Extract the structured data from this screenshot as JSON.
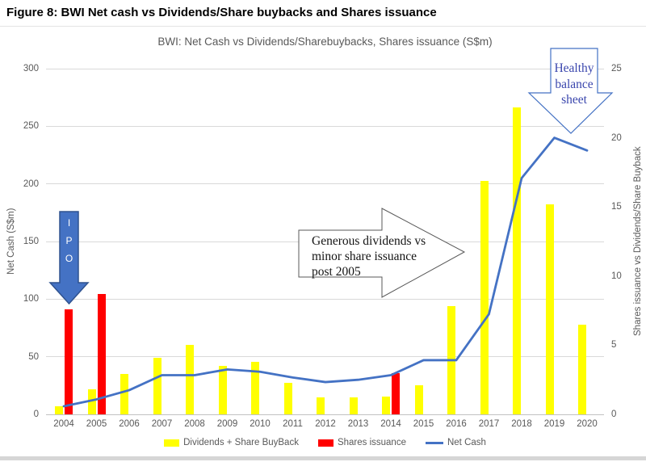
{
  "figure_caption": "Figure 8: BWI Net cash vs Dividends/Share buybacks and Shares issuance",
  "chart": {
    "title": "BWI: Net Cash vs Dividends/Sharebuybacks, Shares issuance (S$m)",
    "left_axis": {
      "title": "Net Cash (S$m)",
      "ticks": [
        0,
        50,
        100,
        150,
        200,
        250,
        300
      ],
      "max": 300
    },
    "right_axis": {
      "title": "Shares issuance vs Dividends/Share Buyback",
      "ticks": [
        0,
        5,
        10,
        15,
        20,
        25
      ],
      "max": 25
    }
  },
  "chart_data": {
    "type": "bar",
    "subtype": "combo-bar-line-dual-axis",
    "title": "BWI: Net Cash vs Dividends/Sharebuybacks, Shares issuance (S$m)",
    "categories": [
      2004,
      2005,
      2006,
      2007,
      2008,
      2009,
      2010,
      2011,
      2012,
      2013,
      2014,
      2015,
      2016,
      2017,
      2018,
      2019,
      2020
    ],
    "series": [
      {
        "name": "Dividends + Share BuyBack",
        "type": "bar",
        "axis": "right",
        "color": "#FFFF00",
        "values": [
          0.6,
          1.8,
          2.9,
          4.1,
          5.0,
          3.5,
          3.8,
          2.3,
          1.2,
          1.2,
          1.3,
          2.1,
          7.8,
          16.9,
          22.2,
          15.2,
          6.5
        ]
      },
      {
        "name": "Shares issuance",
        "type": "bar",
        "axis": "right",
        "color": "#FF0000",
        "values": [
          7.6,
          8.7,
          0,
          0,
          0,
          0,
          0,
          0,
          0,
          0,
          3.0,
          0,
          0,
          0,
          0,
          0,
          0
        ]
      },
      {
        "name": "Net Cash",
        "type": "line",
        "axis": "left",
        "color": "#4472C4",
        "values": [
          7,
          13,
          21,
          34,
          34,
          39,
          37,
          32,
          28,
          30,
          34,
          47,
          47,
          87,
          205,
          240,
          229
        ]
      }
    ],
    "ylabel_left": "Net Cash (S$m)",
    "ylabel_right": "Shares issuance vs Dividends/Share Buyback",
    "ylim_left": [
      0,
      300
    ],
    "ylim_right": [
      0,
      25
    ],
    "grid": "horizontal",
    "legend_position": "bottom"
  },
  "annotations": {
    "ipo": {
      "text": "IPO",
      "lines": [
        "I",
        "P",
        "O"
      ]
    },
    "generous": {
      "text": "Generous dividends vs minor share issuance post 2005",
      "lines": [
        "Generous dividends vs",
        "minor share issuance",
        "post 2005"
      ]
    },
    "healthy": {
      "text": "Healthy balance sheet",
      "lines": [
        "Healthy",
        "balance",
        "sheet"
      ]
    }
  },
  "colors": {
    "dividends_bar": "#FFFF00",
    "issuance_bar": "#FF0000",
    "net_cash_line": "#4472C4",
    "ipo_fill": "#4472C4",
    "ipo_border": "#2F528F",
    "generous_outline": "#595959",
    "healthy_outline": "#4472C4",
    "healthy_text": "#3A46AD",
    "axis_text": "#595959",
    "gridline": "#D9D9D9"
  }
}
